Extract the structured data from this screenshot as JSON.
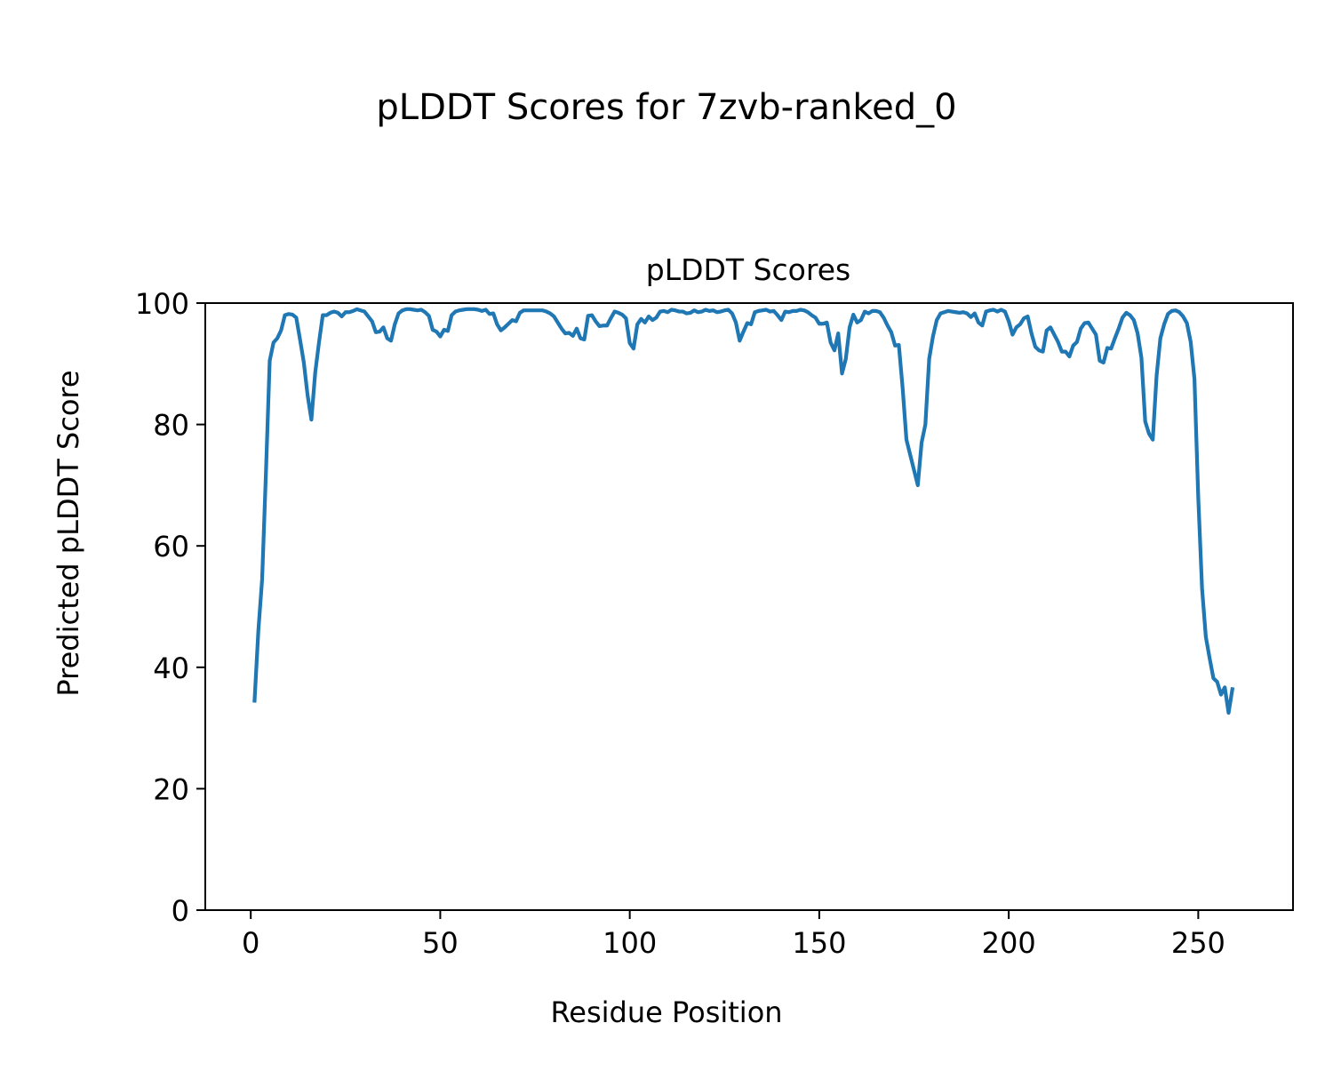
{
  "figure": {
    "suptitle": "pLDDT Scores for 7zvb-ranked_0"
  },
  "chart_data": {
    "type": "line",
    "title": "pLDDT Scores",
    "xlabel": "Residue Position",
    "ylabel": "Predicted pLDDT Score",
    "xlim": [
      -12,
      275
    ],
    "ylim": [
      0,
      100
    ],
    "x_ticks": [
      0,
      50,
      100,
      150,
      200,
      250
    ],
    "y_ticks": [
      0,
      20,
      40,
      60,
      80,
      100
    ],
    "grid": false,
    "legend": "none",
    "series_color": "#1f77b4",
    "series": [
      {
        "x_start": 1,
        "values": [
          34.5,
          46.0,
          54.5,
          72.0,
          90.5,
          93.5,
          94.2,
          95.5,
          98.0,
          98.2,
          98.1,
          97.6,
          94.0,
          90.2,
          84.8,
          80.8,
          88.5,
          93.5,
          98.0,
          98.0,
          98.4,
          98.6,
          98.4,
          97.8,
          98.5,
          98.5,
          98.7,
          99.0,
          98.8,
          98.6,
          97.8,
          97.0,
          95.2,
          95.3,
          96.0,
          94.2,
          93.8,
          96.5,
          98.3,
          98.8,
          99.0,
          99.0,
          98.9,
          98.8,
          98.9,
          98.5,
          97.9,
          95.6,
          95.3,
          94.5,
          95.6,
          95.4,
          98.0,
          98.6,
          98.8,
          98.9,
          99.0,
          99.0,
          99.0,
          98.9,
          98.7,
          98.9,
          98.2,
          98.3,
          96.5,
          95.5,
          96.0,
          96.6,
          97.2,
          97.0,
          98.4,
          98.8,
          98.8,
          98.8,
          98.8,
          98.8,
          98.8,
          98.6,
          98.3,
          97.8,
          96.8,
          95.8,
          95.0,
          95.1,
          94.6,
          95.8,
          94.2,
          94.0,
          97.9,
          98.0,
          97.0,
          96.2,
          96.3,
          96.3,
          97.5,
          98.6,
          98.4,
          98.1,
          97.5,
          93.4,
          92.5,
          96.5,
          97.4,
          96.8,
          97.8,
          97.2,
          97.6,
          98.6,
          98.7,
          98.5,
          98.9,
          98.8,
          98.6,
          98.6,
          98.3,
          98.4,
          98.8,
          98.5,
          98.6,
          98.9,
          98.7,
          98.8,
          98.5,
          98.6,
          98.8,
          98.9,
          98.3,
          96.8,
          93.8,
          95.3,
          96.7,
          96.5,
          98.5,
          98.7,
          98.8,
          98.9,
          98.6,
          98.7,
          98.0,
          97.2,
          98.6,
          98.5,
          98.7,
          98.7,
          98.9,
          98.8,
          98.5,
          98.0,
          97.6,
          96.6,
          96.6,
          96.8,
          93.5,
          92.2,
          95.0,
          88.4,
          90.8,
          96.0,
          98.1,
          96.8,
          97.2,
          98.6,
          98.3,
          98.7,
          98.7,
          98.5,
          97.6,
          96.3,
          95.2,
          93.0,
          93.1,
          86.0,
          77.5,
          75.0,
          72.5,
          70.0,
          77.0,
          80.0,
          90.8,
          94.5,
          97.2,
          98.3,
          98.5,
          98.7,
          98.6,
          98.5,
          98.4,
          98.5,
          98.3,
          97.7,
          98.3,
          96.8,
          96.3,
          98.6,
          98.8,
          98.9,
          98.6,
          98.9,
          98.6,
          97.0,
          94.8,
          96.0,
          96.5,
          97.5,
          97.8,
          95.0,
          92.8,
          92.2,
          92.0,
          95.5,
          96.0,
          94.8,
          93.6,
          92.0,
          92.0,
          91.2,
          93.0,
          93.6,
          95.8,
          96.7,
          96.8,
          95.8,
          94.8,
          90.5,
          90.2,
          92.6,
          92.5,
          94.2,
          95.8,
          97.6,
          98.4,
          98.0,
          97.2,
          95.0,
          91.0,
          80.5,
          78.5,
          77.5,
          88.0,
          94.2,
          96.5,
          98.2,
          98.7,
          98.8,
          98.5,
          97.8,
          96.7,
          93.6,
          87.5,
          68.0,
          53.0,
          45.0,
          41.5,
          38.2,
          37.6,
          35.5,
          36.7,
          32.5,
          36.4
        ]
      }
    ]
  }
}
